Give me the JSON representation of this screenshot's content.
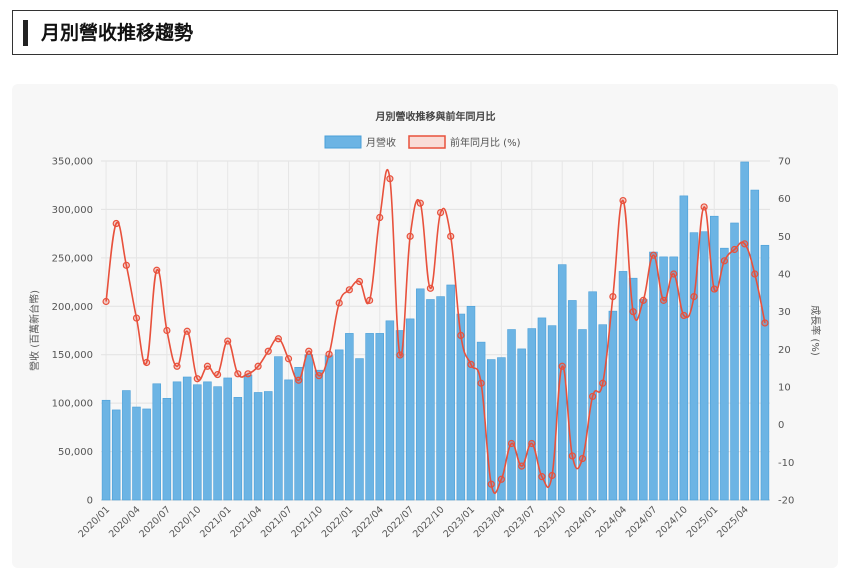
{
  "header": {
    "title": "月別營收推移趨勢"
  },
  "colors": {
    "bar_fill": "#6cb4e4",
    "bar_stroke": "#4a9fd8",
    "line": "#e8513c",
    "accent": "#222222"
  },
  "chart_data": {
    "type": "bar+line",
    "title": "月別營收推移與前年同月比",
    "legend": [
      "月營收",
      "前年同月比 (%)"
    ],
    "legend_position": "top-center",
    "ylabel_left": "營收 (百萬新台幣)",
    "ylabel_right": "成長率 (%)",
    "ylim_left": [
      0,
      350000
    ],
    "ylim_right": [
      -20,
      70
    ],
    "yticks_left": [
      "0",
      "50,000",
      "100,000",
      "150,000",
      "200,000",
      "250,000",
      "300,000",
      "350,000"
    ],
    "yticks_right": [
      "-20",
      "-10",
      "0",
      "10",
      "20",
      "30",
      "40",
      "50",
      "60",
      "70"
    ],
    "grid": true,
    "xtick_labels": [
      "2020/01",
      "2020/04",
      "2020/07",
      "2020/10",
      "2021/01",
      "2021/04",
      "2021/07",
      "2021/10",
      "2022/01",
      "2022/04",
      "2022/07",
      "2022/10",
      "2023/01",
      "2023/04",
      "2023/07",
      "2023/10",
      "2024/01",
      "2024/04",
      "2024/07",
      "2024/10",
      "2025/01",
      "2025/04"
    ],
    "categories": [
      "2020/01",
      "2020/02",
      "2020/03",
      "2020/04",
      "2020/05",
      "2020/06",
      "2020/07",
      "2020/08",
      "2020/09",
      "2020/10",
      "2020/11",
      "2020/12",
      "2021/01",
      "2021/02",
      "2021/03",
      "2021/04",
      "2021/05",
      "2021/06",
      "2021/07",
      "2021/08",
      "2021/09",
      "2021/10",
      "2021/11",
      "2021/12",
      "2022/01",
      "2022/02",
      "2022/03",
      "2022/04",
      "2022/05",
      "2022/06",
      "2022/07",
      "2022/08",
      "2022/09",
      "2022/10",
      "2022/11",
      "2022/12",
      "2023/01",
      "2023/02",
      "2023/03",
      "2023/04",
      "2023/05",
      "2023/06",
      "2023/07",
      "2023/08",
      "2023/09",
      "2023/10",
      "2023/11",
      "2023/12",
      "2024/01",
      "2024/02",
      "2024/03",
      "2024/04",
      "2024/05",
      "2024/06",
      "2024/07",
      "2024/08",
      "2024/09",
      "2024/10",
      "2024/11",
      "2024/12",
      "2025/01",
      "2025/02",
      "2025/03",
      "2025/04",
      "2025/05",
      "2025/06"
    ],
    "series": [
      {
        "name": "月營收",
        "type": "bar",
        "values": [
          103000,
          93000,
          113000,
          96000,
          94000,
          120000,
          105000,
          122000,
          127000,
          119000,
          122000,
          117000,
          126000,
          106000,
          129000,
          111000,
          112000,
          148000,
          124000,
          137000,
          150000,
          134000,
          149000,
          155000,
          172000,
          146000,
          172000,
          172000,
          185000,
          175000,
          187000,
          218000,
          207000,
          210000,
          222000,
          192000,
          200000,
          163000,
          145000,
          147000,
          176000,
          156000,
          177000,
          188000,
          180000,
          243000,
          206000,
          176000,
          215000,
          181000,
          195000,
          236000,
          229000,
          207000,
          256000,
          251000,
          251000,
          314000,
          276000,
          277000,
          293000,
          260000,
          286000,
          349000,
          320000,
          263000
        ]
      },
      {
        "name": "前年同月比 (%)",
        "type": "line",
        "values": [
          32.7,
          53.4,
          42.3,
          28.3,
          16.5,
          41.0,
          25.0,
          15.5,
          24.8,
          12.2,
          15.5,
          13.3,
          22.2,
          13.5,
          13.5,
          15.5,
          19.5,
          22.8,
          17.5,
          11.8,
          19.5,
          13.0,
          18.7,
          32.3,
          35.8,
          38.0,
          33.0,
          55.0,
          65.3,
          18.5,
          50.0,
          58.8,
          36.2,
          56.3,
          50.0,
          23.7,
          16.0,
          11.0,
          -15.8,
          -14.5,
          -5.0,
          -11.0,
          -5.0,
          -13.8,
          -13.5,
          15.5,
          -8.3,
          -9.0,
          7.5,
          11.0,
          34.0,
          59.5,
          30.0,
          33.0,
          45.0,
          33.0,
          40.0,
          29.0,
          34.0,
          57.8,
          36.0,
          43.5,
          46.5,
          48.0,
          40.0,
          27.0
        ]
      }
    ]
  }
}
